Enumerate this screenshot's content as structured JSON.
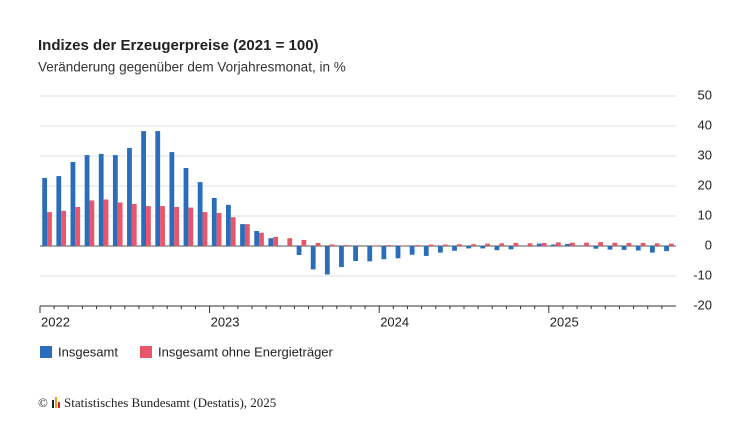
{
  "chart_data": {
    "type": "bar",
    "title": "Indizes der Erzeugerpreise (2021 = 100)",
    "subtitle": "Veränderung gegenüber dem Vorjahresmonat, in %",
    "source": "Statistisches Bundesamt (Destatis), 2025",
    "copyright": "©",
    "categories": [
      "2022",
      null,
      null,
      null,
      null,
      null,
      null,
      null,
      null,
      null,
      null,
      null,
      "2023",
      null,
      null,
      null,
      null,
      null,
      null,
      null,
      null,
      null,
      null,
      null,
      "2024",
      null,
      null,
      null,
      null,
      null,
      null,
      null,
      null,
      null,
      null,
      null,
      "2025",
      null,
      null,
      null,
      null,
      null,
      null,
      null,
      null
    ],
    "series": [
      {
        "name": "Insgesamt",
        "color": "#2a6ebb",
        "values": [
          22.7,
          23.3,
          28,
          30.3,
          30.7,
          30.3,
          32.7,
          38.3,
          38.3,
          31.3,
          26,
          21.3,
          16,
          13.7,
          7.3,
          5,
          2.6,
          0.1,
          -3,
          -7.8,
          -9.5,
          -7,
          -5,
          -5.1,
          -4.4,
          -4.1,
          -2.9,
          -3.3,
          -2.2,
          -1.6,
          -0.8,
          -0.8,
          -1.4,
          -1.1,
          0.1,
          0.8,
          0.5,
          0.7,
          0.2,
          -0.9,
          -1.2,
          -1.3,
          -1.5,
          -2.2,
          -1.7
        ]
      },
      {
        "name": "Insgesamt ohne Energieträger",
        "color": "#e8566c",
        "values": [
          11.3,
          11.7,
          13,
          15.2,
          15.5,
          14.5,
          14,
          13.3,
          13.3,
          13,
          12.8,
          11.3,
          11,
          9.6,
          7.3,
          4.4,
          3,
          2.6,
          2,
          1,
          0.5,
          0.3,
          0,
          0.2,
          0.3,
          0.2,
          0.3,
          0.5,
          0.5,
          0.6,
          0.6,
          0.8,
          0.9,
          1,
          0.9,
          1,
          1.2,
          1.1,
          1.1,
          1.3,
          1.1,
          1,
          1,
          0.9,
          0.8
        ]
      }
    ],
    "ylim": [
      -20,
      50
    ],
    "yticks": [
      -20,
      -10,
      0,
      10,
      20,
      30,
      40,
      50
    ],
    "grid": true
  }
}
